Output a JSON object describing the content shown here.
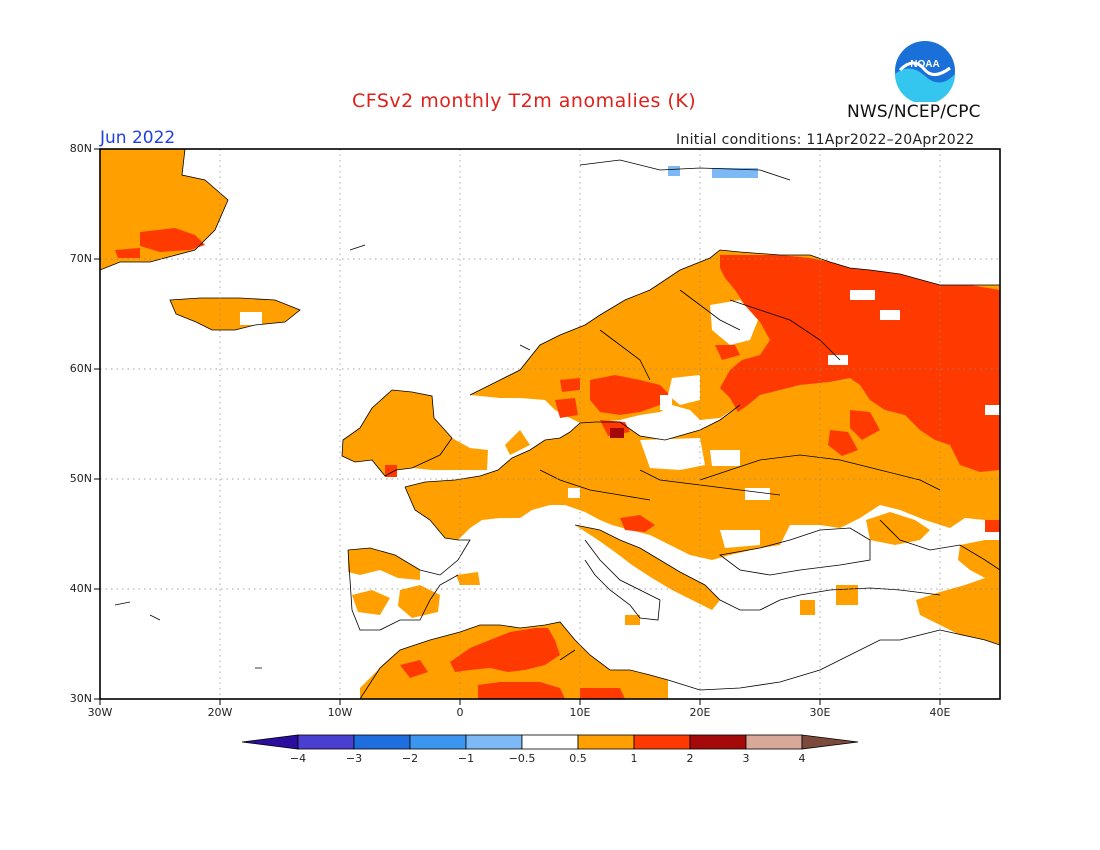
{
  "title": "CFSv2 monthly T2m anomalies (K)",
  "month": "Jun 2022",
  "initial_conditions": "Initial conditions: 11Apr2022–20Apr2022",
  "agency": "NWS/NCEP/CPC",
  "logo_text": "NOAA",
  "lat_labels": [
    "80N",
    "70N",
    "60N",
    "50N",
    "40N",
    "30N"
  ],
  "lon_labels": [
    "30W",
    "20W",
    "10W",
    "0",
    "10E",
    "20E",
    "30E",
    "40E"
  ],
  "colorbar": {
    "labels": [
      "−4",
      "−3",
      "−2",
      "−1",
      "−0.5",
      "0.5",
      "1",
      "2",
      "3",
      "4"
    ],
    "colors": [
      "#2a0f9e",
      "#4a3fd0",
      "#1e6ee0",
      "#3c96f0",
      "#7db9f4",
      "#ffffff",
      "#ffa000",
      "#ff3a00",
      "#a50a0a",
      "#d8a898",
      "#7b4a3c"
    ]
  },
  "colors": {
    "anom_0_5_1": "#ffa000",
    "anom_1_2": "#ff3a00",
    "anom_2_3": "#a50a0a",
    "anom_neg_0_5_1": "#7db9f4",
    "title": "#e0201a",
    "month": "#2040e0"
  }
}
